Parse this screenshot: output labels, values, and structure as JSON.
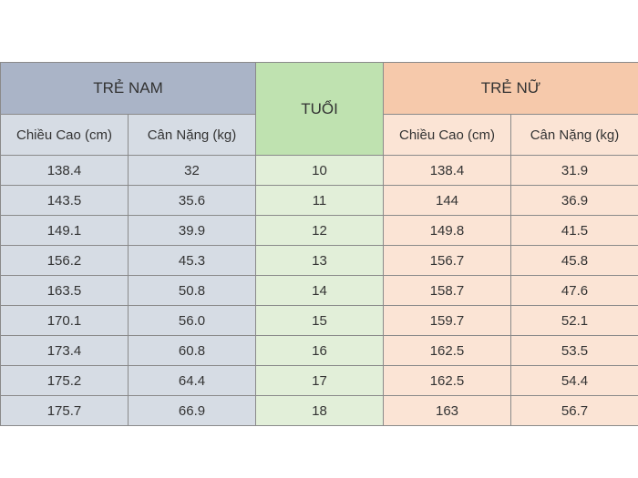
{
  "headers": {
    "boys_group": "TRẺ NAM",
    "age": "TUỔI",
    "girls_group": "TRẺ NỮ",
    "height": "Chiều Cao (cm)",
    "weight": "Cân Nặng (kg)"
  },
  "rows": [
    {
      "boy_height": "138.4",
      "boy_weight": "32",
      "age": "10",
      "girl_height": "138.4",
      "girl_weight": "31.9"
    },
    {
      "boy_height": "143.5",
      "boy_weight": "35.6",
      "age": "11",
      "girl_height": "144",
      "girl_weight": "36.9"
    },
    {
      "boy_height": "149.1",
      "boy_weight": "39.9",
      "age": "12",
      "girl_height": "149.8",
      "girl_weight": "41.5"
    },
    {
      "boy_height": "156.2",
      "boy_weight": "45.3",
      "age": "13",
      "girl_height": "156.7",
      "girl_weight": "45.8"
    },
    {
      "boy_height": "163.5",
      "boy_weight": "50.8",
      "age": "14",
      "girl_height": "158.7",
      "girl_weight": "47.6"
    },
    {
      "boy_height": "170.1",
      "boy_weight": "56.0",
      "age": "15",
      "girl_height": "159.7",
      "girl_weight": "52.1"
    },
    {
      "boy_height": "173.4",
      "boy_weight": "60.8",
      "age": "16",
      "girl_height": "162.5",
      "girl_weight": "53.5"
    },
    {
      "boy_height": "175.2",
      "boy_weight": "64.4",
      "age": "17",
      "girl_height": "162.5",
      "girl_weight": "54.4"
    },
    {
      "boy_height": "175.7",
      "boy_weight": "66.9",
      "age": "18",
      "girl_height": "163",
      "girl_weight": "56.7"
    }
  ],
  "colors": {
    "boy_header": "#aab4c7",
    "boy_fill": "#d6dce4",
    "age_header": "#bfe2b0",
    "age_fill": "#e2efd9",
    "girl_header": "#f6c9ab",
    "girl_fill": "#fbe4d5"
  }
}
